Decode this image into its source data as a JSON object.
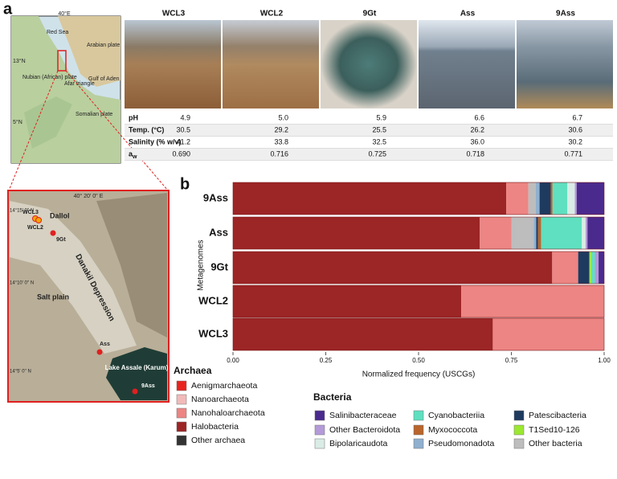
{
  "panel_labels": [
    "a",
    "b"
  ],
  "overview_map": {
    "labels": [
      "40°E",
      "Red Sea",
      "Arabian plate",
      "13°N",
      "Nubian (African) plate",
      "Afar triangle",
      "Gulf of Aden",
      "Somalian plate",
      "5°N"
    ]
  },
  "zoom_map": {
    "labels": [
      "40° 20' 0'' E",
      "14°15' 0'' N",
      "WCL3",
      "WCL2",
      "Dallol",
      "9Gt",
      "Danakil Depression",
      "14°10' 0'' N",
      "Salt plain",
      "Ass",
      "Lake Assale (Karum)",
      "9Ass",
      "14°5' 0'' N"
    ]
  },
  "table": {
    "columns": [
      "WCL3",
      "WCL2",
      "9Gt",
      "Ass",
      "9Ass"
    ],
    "rows": [
      {
        "label": "pH",
        "values": [
          "4.9",
          "5.0",
          "5.9",
          "6.6",
          "6.7"
        ]
      },
      {
        "label": "Temp. (°C)",
        "values": [
          "30.5",
          "29.2",
          "25.5",
          "26.2",
          "30.6"
        ]
      },
      {
        "label": "Salinity (% w/v)",
        "values": [
          "41.2",
          "33.8",
          "32.5",
          "36.0",
          "30.2"
        ]
      },
      {
        "label": "a",
        "sub": "w",
        "values": [
          "0.690",
          "0.716",
          "0.725",
          "0.718",
          "0.771"
        ]
      }
    ]
  },
  "chart_data": {
    "type": "stacked-bar-horizontal",
    "ylabel": "Metagenomes",
    "xlabel": "Normalized frequency (USCGs)",
    "categories": [
      "9Ass",
      "Ass",
      "9Gt",
      "WCL2",
      "WCL3"
    ],
    "xlim": [
      0,
      1
    ],
    "xticks": [
      {
        "value": 0,
        "label": "0.00"
      },
      {
        "value": 0.25,
        "label": "0.25"
      },
      {
        "value": 0.5,
        "label": "0.50"
      },
      {
        "value": 0.75,
        "label": "0.75"
      },
      {
        "value": 1,
        "label": "1.00"
      }
    ],
    "series": [
      {
        "name": "Aenigmarchaeota",
        "group": "Archaea",
        "color": "#e8231e",
        "values": [
          0,
          0,
          0,
          0,
          0
        ]
      },
      {
        "name": "Nanoarchaeota",
        "group": "Archaea",
        "color": "#f2b9b9",
        "values": [
          0,
          0,
          0,
          0,
          0
        ]
      },
      {
        "name": "Nanohaloarchaeota",
        "group": "Archaea",
        "color": "#ec8583",
        "values": [
          0.06,
          0.085,
          0.07,
          0.385,
          0.3
        ]
      },
      {
        "name": "Halobacteria",
        "group": "Archaea",
        "color": "#9c2526",
        "values": [
          0.736,
          0.665,
          0.86,
          0.615,
          0.7
        ]
      },
      {
        "name": "Other archaea",
        "group": "Archaea",
        "color": "#333333",
        "values": [
          0,
          0,
          0,
          0,
          0
        ]
      },
      {
        "name": "Salinibacteraceae",
        "group": "Bacteria",
        "color": "#4b2a8e",
        "values": [
          0.074,
          0.045,
          0.015,
          0,
          0
        ]
      },
      {
        "name": "Other Bacteroidota",
        "group": "Bacteria",
        "color": "#b49ad8",
        "values": [
          0.005,
          0.005,
          0.01,
          0,
          0
        ]
      },
      {
        "name": "Bipolaricaudota",
        "group": "Bacteria",
        "color": "#d9ece5",
        "values": [
          0.02,
          0.01,
          0,
          0,
          0
        ]
      },
      {
        "name": "Cyanobacteriia",
        "group": "Bacteria",
        "color": "#5fe0c0",
        "values": [
          0.04,
          0.11,
          0.01,
          0,
          0
        ]
      },
      {
        "name": "Myxococcota",
        "group": "Bacteria",
        "color": "#b9652c",
        "values": [
          0.005,
          0.008,
          0,
          0,
          0
        ]
      },
      {
        "name": "Pseudomonadota",
        "group": "Bacteria",
        "color": "#8fb0cf",
        "values": [
          0.01,
          0.007,
          0,
          0,
          0
        ]
      },
      {
        "name": "Patescibacteria",
        "group": "Bacteria",
        "color": "#1f3a5f",
        "values": [
          0.03,
          0.005,
          0.03,
          0,
          0
        ]
      },
      {
        "name": "T1Sed10-126",
        "group": "Bacteria",
        "color": "#9be830",
        "values": [
          0,
          0,
          0.005,
          0,
          0
        ]
      },
      {
        "name": "Other bacteria",
        "group": "Bacteria",
        "color": "#bdbdbd",
        "values": [
          0.02,
          0.06,
          0,
          0,
          0
        ]
      }
    ]
  }
}
